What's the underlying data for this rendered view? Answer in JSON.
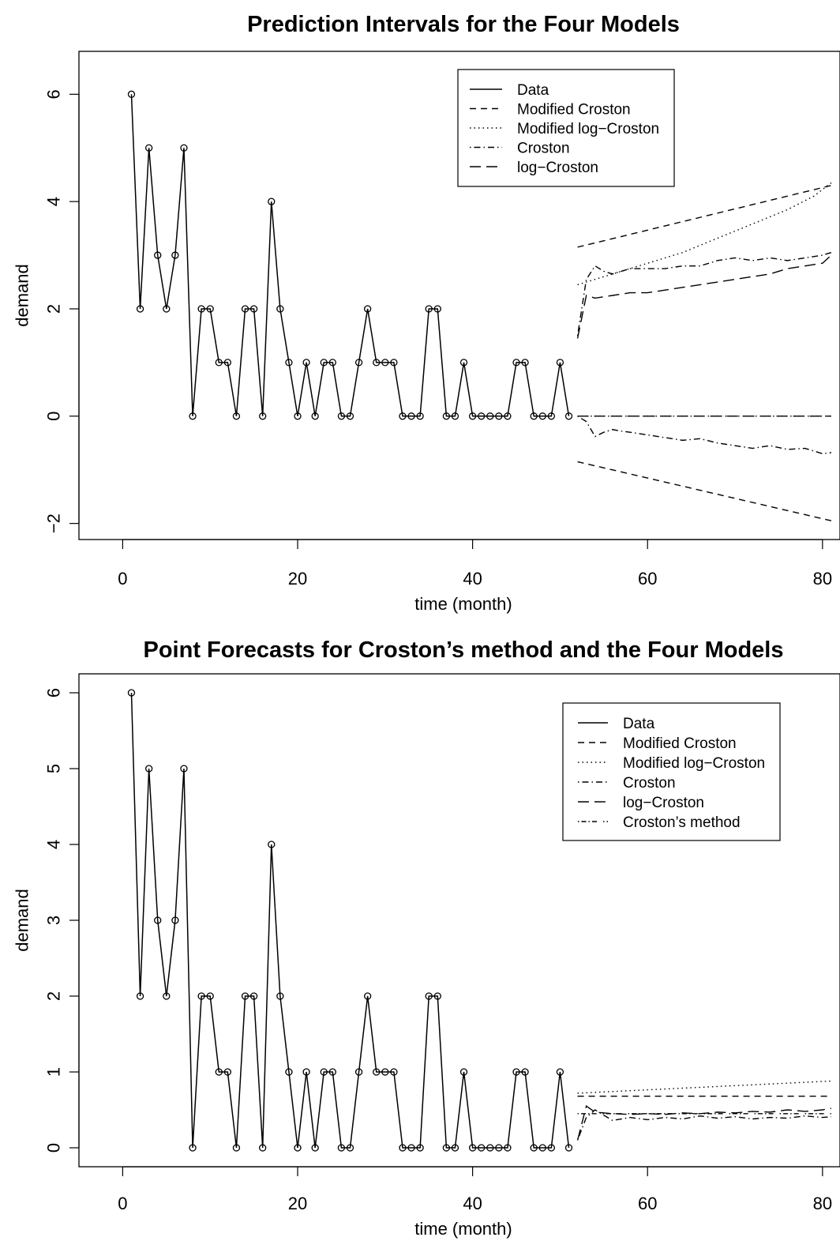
{
  "chart_data": [
    {
      "type": "line",
      "title": "Prediction Intervals for the Four Models",
      "xlabel": "time (month)",
      "ylabel": "demand",
      "xlim": [
        -5,
        82
      ],
      "ylim": [
        -2.3,
        6.8
      ],
      "x_ticks": [
        "0",
        "20",
        "40",
        "60",
        "80"
      ],
      "y_ticks": [
        "-2",
        "0",
        "2",
        "4",
        "6"
      ],
      "legend_position": "top-right",
      "legend": [
        "Data",
        "Modified Croston",
        "Modified log−Croston",
        "Croston",
        "log−Croston"
      ],
      "data": {
        "name": "Data",
        "x": [
          1,
          2,
          3,
          4,
          5,
          6,
          7,
          8,
          9,
          10,
          11,
          12,
          13,
          14,
          15,
          16,
          17,
          18,
          19,
          20,
          21,
          22,
          23,
          24,
          25,
          26,
          27,
          28,
          29,
          30,
          31,
          32,
          33,
          34,
          35,
          36,
          37,
          38,
          39,
          40,
          41,
          42,
          43,
          44,
          45,
          46,
          47,
          48,
          49,
          50,
          51
        ],
        "y": [
          6,
          2,
          5,
          3,
          2,
          3,
          5,
          0,
          2,
          2,
          1,
          1,
          0,
          2,
          2,
          0,
          4,
          2,
          1,
          0,
          1,
          0,
          1,
          1,
          0,
          0,
          1,
          2,
          1,
          1,
          1,
          0,
          0,
          0,
          2,
          2,
          0,
          0,
          1,
          0,
          0,
          0,
          0,
          0,
          1,
          1,
          0,
          0,
          0,
          1,
          0
        ]
      },
      "series": [
        {
          "name": "Modified Croston",
          "x": [
            52,
            81
          ],
          "upper": [
            3.15,
            4.3
          ],
          "lower": [
            -0.85,
            -1.95
          ]
        },
        {
          "name": "Modified log−Croston",
          "x": [
            52,
            55,
            58,
            61,
            64,
            67,
            70,
            73,
            76,
            79,
            81
          ],
          "upper": [
            2.45,
            2.6,
            2.75,
            2.9,
            3.05,
            3.25,
            3.45,
            3.65,
            3.85,
            4.1,
            4.35
          ],
          "lower": [
            0,
            0,
            0,
            0,
            0,
            0,
            0,
            0,
            0,
            0,
            0
          ]
        },
        {
          "name": "Croston",
          "x": [
            52,
            53,
            54,
            55,
            56,
            57,
            58,
            60,
            62,
            64,
            66,
            68,
            70,
            72,
            74,
            76,
            78,
            80,
            81
          ],
          "upper": [
            1.5,
            2.55,
            2.8,
            2.7,
            2.65,
            2.7,
            2.75,
            2.75,
            2.75,
            2.8,
            2.8,
            2.9,
            2.95,
            2.9,
            2.95,
            2.9,
            2.95,
            3.0,
            3.05
          ],
          "lower": [
            0,
            -0.1,
            -0.38,
            -0.3,
            -0.25,
            -0.28,
            -0.3,
            -0.35,
            -0.4,
            -0.45,
            -0.42,
            -0.5,
            -0.55,
            -0.6,
            -0.55,
            -0.62,
            -0.6,
            -0.7,
            -0.68
          ]
        },
        {
          "name": "log−Croston",
          "x": [
            52,
            53,
            54,
            56,
            58,
            60,
            62,
            64,
            66,
            68,
            70,
            72,
            74,
            76,
            78,
            80,
            81
          ],
          "upper": [
            1.45,
            2.25,
            2.2,
            2.25,
            2.3,
            2.3,
            2.35,
            2.4,
            2.45,
            2.5,
            2.55,
            2.6,
            2.65,
            2.75,
            2.8,
            2.85,
            3.0
          ],
          "lower": [
            0,
            0,
            0,
            0,
            0,
            0,
            0,
            0,
            0,
            0,
            0,
            0,
            0,
            0,
            0,
            0,
            0
          ]
        }
      ]
    },
    {
      "type": "line",
      "title": "Point Forecasts for Croston’s method and the Four Models",
      "xlabel": "time (month)",
      "ylabel": "demand",
      "xlim": [
        -5,
        82
      ],
      "ylim": [
        -0.25,
        6.25
      ],
      "x_ticks": [
        "0",
        "20",
        "40",
        "60",
        "80"
      ],
      "y_ticks": [
        "0",
        "1",
        "2",
        "3",
        "4",
        "5",
        "6"
      ],
      "legend_position": "top-right",
      "legend": [
        "Data",
        "Modified Croston",
        "Modified log−Croston",
        "Croston",
        "log−Croston",
        "Croston’s method"
      ],
      "data": {
        "name": "Data",
        "x": [
          1,
          2,
          3,
          4,
          5,
          6,
          7,
          8,
          9,
          10,
          11,
          12,
          13,
          14,
          15,
          16,
          17,
          18,
          19,
          20,
          21,
          22,
          23,
          24,
          25,
          26,
          27,
          28,
          29,
          30,
          31,
          32,
          33,
          34,
          35,
          36,
          37,
          38,
          39,
          40,
          41,
          42,
          43,
          44,
          45,
          46,
          47,
          48,
          49,
          50,
          51
        ],
        "y": [
          6,
          2,
          5,
          3,
          2,
          3,
          5,
          0,
          2,
          2,
          1,
          1,
          0,
          2,
          2,
          0,
          4,
          2,
          1,
          0,
          1,
          0,
          1,
          1,
          0,
          0,
          1,
          2,
          1,
          1,
          1,
          0,
          0,
          0,
          2,
          2,
          0,
          0,
          1,
          0,
          0,
          0,
          0,
          0,
          1,
          1,
          0,
          0,
          0,
          1,
          0
        ]
      },
      "series": [
        {
          "name": "Modified Croston",
          "x": [
            52,
            81
          ],
          "y": [
            0.68,
            0.68
          ]
        },
        {
          "name": "Modified log−Croston",
          "x": [
            52,
            81
          ],
          "y": [
            0.72,
            0.88
          ]
        },
        {
          "name": "Croston",
          "x": [
            52,
            53,
            54,
            56,
            58,
            60,
            62,
            64,
            66,
            68,
            70,
            72,
            74,
            76,
            78,
            80,
            81
          ],
          "y": [
            0.1,
            0.4,
            0.5,
            0.36,
            0.4,
            0.37,
            0.4,
            0.38,
            0.42,
            0.39,
            0.41,
            0.38,
            0.4,
            0.39,
            0.42,
            0.4,
            0.41
          ]
        },
        {
          "name": "log−Croston",
          "x": [
            52,
            53,
            54,
            56,
            58,
            60,
            62,
            64,
            66,
            68,
            70,
            72,
            74,
            76,
            78,
            80,
            81
          ],
          "y": [
            0.1,
            0.55,
            0.47,
            0.45,
            0.44,
            0.45,
            0.44,
            0.46,
            0.45,
            0.47,
            0.46,
            0.48,
            0.47,
            0.5,
            0.48,
            0.5,
            0.52
          ]
        },
        {
          "name": "Croston’s method",
          "x": [
            52,
            81
          ],
          "y": [
            0.45,
            0.45
          ]
        }
      ]
    }
  ]
}
